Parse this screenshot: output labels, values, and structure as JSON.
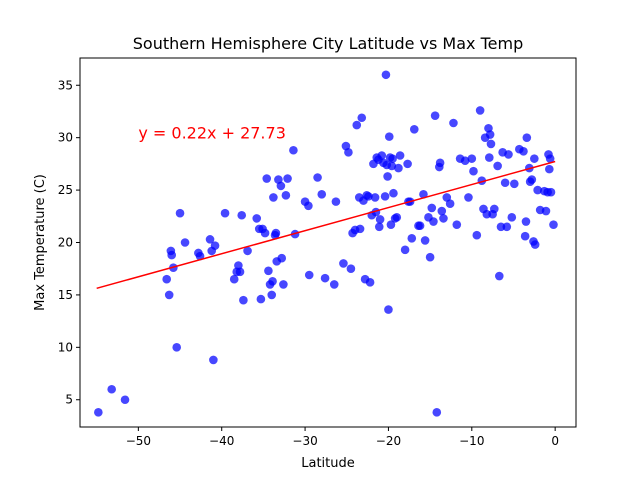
{
  "chart_data": {
    "type": "scatter",
    "title": "Southern  Hemisphere City Latitude vs Max Temp",
    "xlabel": "Latitude",
    "ylabel": "Max Temperature (C)",
    "xlim": [
      -57,
      2.5
    ],
    "ylim": [
      2.4,
      37.6
    ],
    "xticks": [
      -50,
      -40,
      -30,
      -20,
      -10,
      0
    ],
    "yticks": [
      5,
      10,
      15,
      20,
      25,
      30,
      35
    ],
    "grid": false,
    "legend": "none",
    "point_color": "#0000ff",
    "line_color": "#ff0000",
    "annotation": {
      "text": "y = 0.22x + 27.73",
      "x": -50,
      "y": 29.9,
      "color": "#ff0000"
    },
    "regression": {
      "slope": 0.22,
      "intercept": 27.73,
      "x_range": [
        -55,
        0
      ]
    },
    "points": [
      [
        -54.8,
        3.8
      ],
      [
        -53.2,
        6.0
      ],
      [
        -51.6,
        5.0
      ],
      [
        -46.6,
        16.5
      ],
      [
        -46.3,
        15.0
      ],
      [
        -46.1,
        19.2
      ],
      [
        -46.0,
        18.8
      ],
      [
        -45.8,
        17.6
      ],
      [
        -45.4,
        10.0
      ],
      [
        -45.0,
        22.8
      ],
      [
        -44.4,
        20.0
      ],
      [
        -42.8,
        19.0
      ],
      [
        -42.6,
        18.7
      ],
      [
        -41.4,
        20.3
      ],
      [
        -41.2,
        19.2
      ],
      [
        -41.0,
        8.8
      ],
      [
        -40.8,
        19.7
      ],
      [
        -39.6,
        22.8
      ],
      [
        -38.5,
        16.5
      ],
      [
        -38.2,
        17.2
      ],
      [
        -38.0,
        17.8
      ],
      [
        -37.8,
        17.2
      ],
      [
        -37.6,
        22.6
      ],
      [
        -37.4,
        14.5
      ],
      [
        -36.9,
        19.2
      ],
      [
        -35.8,
        22.3
      ],
      [
        -35.5,
        21.3
      ],
      [
        -35.3,
        14.6
      ],
      [
        -35.1,
        21.3
      ],
      [
        -34.8,
        20.9
      ],
      [
        -34.6,
        26.1
      ],
      [
        -34.4,
        17.3
      ],
      [
        -34.2,
        16.0
      ],
      [
        -34.0,
        15.0
      ],
      [
        -33.9,
        16.3
      ],
      [
        -33.8,
        24.3
      ],
      [
        -33.6,
        20.7
      ],
      [
        -33.5,
        20.9
      ],
      [
        -33.4,
        18.2
      ],
      [
        -33.2,
        26.0
      ],
      [
        -32.9,
        25.4
      ],
      [
        -32.8,
        18.5
      ],
      [
        -32.6,
        16.0
      ],
      [
        -32.3,
        24.5
      ],
      [
        -32.1,
        26.1
      ],
      [
        -31.4,
        28.8
      ],
      [
        -31.2,
        20.8
      ],
      [
        -30.0,
        23.9
      ],
      [
        -29.6,
        23.5
      ],
      [
        -29.5,
        16.9
      ],
      [
        -28.5,
        26.2
      ],
      [
        -28.0,
        24.6
      ],
      [
        -27.6,
        16.6
      ],
      [
        -26.5,
        16.0
      ],
      [
        -26.3,
        23.9
      ],
      [
        -25.4,
        18.0
      ],
      [
        -25.1,
        29.2
      ],
      [
        -24.8,
        28.6
      ],
      [
        -24.5,
        17.5
      ],
      [
        -24.3,
        20.9
      ],
      [
        -24.0,
        21.2
      ],
      [
        -23.8,
        31.2
      ],
      [
        -23.5,
        24.3
      ],
      [
        -23.4,
        21.3
      ],
      [
        -23.2,
        31.9
      ],
      [
        -23.0,
        24.0
      ],
      [
        -22.8,
        16.5
      ],
      [
        -22.6,
        24.5
      ],
      [
        -22.4,
        24.4
      ],
      [
        -22.2,
        16.2
      ],
      [
        -22.0,
        22.6
      ],
      [
        -21.8,
        27.5
      ],
      [
        -21.6,
        24.3
      ],
      [
        -21.5,
        22.9
      ],
      [
        -21.4,
        28.1
      ],
      [
        -21.2,
        27.9
      ],
      [
        -21.1,
        21.5
      ],
      [
        -21.0,
        22.2
      ],
      [
        -20.8,
        28.3
      ],
      [
        -20.6,
        27.6
      ],
      [
        -20.4,
        24.4
      ],
      [
        -20.3,
        36.0
      ],
      [
        -20.2,
        27.4
      ],
      [
        -20.1,
        26.3
      ],
      [
        -20.0,
        13.6
      ],
      [
        -19.9,
        30.1
      ],
      [
        -19.8,
        28.1
      ],
      [
        -19.7,
        21.7
      ],
      [
        -19.6,
        27.3
      ],
      [
        -19.5,
        28.0
      ],
      [
        -19.4,
        24.7
      ],
      [
        -19.2,
        22.3
      ],
      [
        -19.0,
        22.4
      ],
      [
        -18.8,
        27.1
      ],
      [
        -18.6,
        28.3
      ],
      [
        -18.0,
        19.3
      ],
      [
        -17.7,
        27.5
      ],
      [
        -17.6,
        23.9
      ],
      [
        -17.4,
        23.9
      ],
      [
        -17.2,
        20.4
      ],
      [
        -16.9,
        30.8
      ],
      [
        -16.4,
        21.6
      ],
      [
        -16.2,
        21.6
      ],
      [
        -15.8,
        24.6
      ],
      [
        -15.6,
        20.2
      ],
      [
        -15.2,
        22.4
      ],
      [
        -15.0,
        18.6
      ],
      [
        -14.8,
        23.3
      ],
      [
        -14.6,
        22.0
      ],
      [
        -14.4,
        32.1
      ],
      [
        -14.2,
        3.8
      ],
      [
        -13.9,
        27.2
      ],
      [
        -13.8,
        27.6
      ],
      [
        -13.6,
        23.0
      ],
      [
        -13.4,
        22.3
      ],
      [
        -13.0,
        24.3
      ],
      [
        -12.6,
        23.7
      ],
      [
        -12.2,
        31.4
      ],
      [
        -11.8,
        21.7
      ],
      [
        -11.4,
        28.0
      ],
      [
        -10.8,
        27.8
      ],
      [
        -10.4,
        24.3
      ],
      [
        -10.0,
        28.0
      ],
      [
        -9.8,
        26.8
      ],
      [
        -9.4,
        20.7
      ],
      [
        -9.0,
        32.6
      ],
      [
        -8.8,
        25.9
      ],
      [
        -8.6,
        23.2
      ],
      [
        -8.4,
        30.0
      ],
      [
        -8.2,
        22.7
      ],
      [
        -8.0,
        30.9
      ],
      [
        -7.9,
        28.1
      ],
      [
        -7.8,
        30.3
      ],
      [
        -7.7,
        29.4
      ],
      [
        -7.5,
        22.7
      ],
      [
        -7.3,
        23.2
      ],
      [
        -6.9,
        27.3
      ],
      [
        -6.7,
        16.8
      ],
      [
        -6.5,
        21.5
      ],
      [
        -6.3,
        28.6
      ],
      [
        -6.0,
        25.7
      ],
      [
        -5.8,
        21.5
      ],
      [
        -5.6,
        28.4
      ],
      [
        -5.2,
        22.4
      ],
      [
        -4.9,
        25.6
      ],
      [
        -4.3,
        28.9
      ],
      [
        -3.8,
        28.7
      ],
      [
        -3.6,
        20.6
      ],
      [
        -3.5,
        22.0
      ],
      [
        -3.4,
        30.0
      ],
      [
        -3.1,
        27.1
      ],
      [
        -3.0,
        25.8
      ],
      [
        -2.8,
        26.0
      ],
      [
        -2.6,
        20.1
      ],
      [
        -2.5,
        28.0
      ],
      [
        -2.4,
        19.8
      ],
      [
        -2.1,
        25.0
      ],
      [
        -1.8,
        23.1
      ],
      [
        -1.3,
        24.9
      ],
      [
        -1.1,
        23.0
      ],
      [
        -0.9,
        24.8
      ],
      [
        -0.8,
        28.4
      ],
      [
        -0.7,
        27.0
      ],
      [
        -0.6,
        28.0
      ],
      [
        -0.5,
        24.8
      ],
      [
        -0.2,
        21.7
      ]
    ]
  }
}
